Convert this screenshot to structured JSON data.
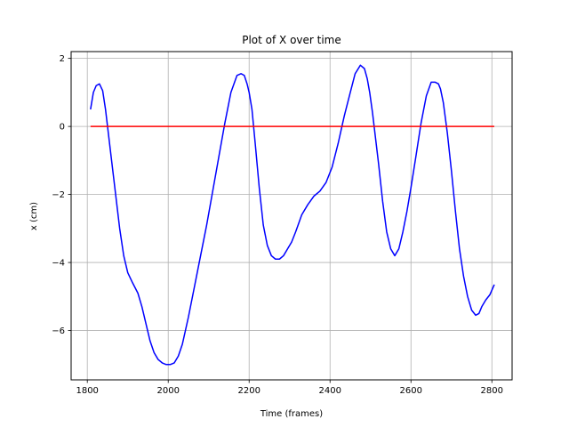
{
  "chart_data": {
    "type": "line",
    "title": "Plot of X over time",
    "xlabel": "Time (frames)",
    "ylabel": "x (cm)",
    "xlim": [
      1760,
      2850
    ],
    "ylim": [
      -7.45,
      2.2
    ],
    "xticks": [
      1800,
      2000,
      2200,
      2400,
      2600,
      2800
    ],
    "xtick_labels": [
      "1800",
      "2000",
      "2200",
      "2400",
      "2600",
      "2800"
    ],
    "yticks": [
      2,
      0,
      -2,
      -4,
      -6
    ],
    "ytick_labels": [
      "2",
      "0",
      "−2",
      "−4",
      "−6"
    ],
    "grid": true,
    "series": [
      {
        "color": "#0000ff",
        "x": [
          1808,
          1815,
          1822,
          1830,
          1838,
          1845,
          1852,
          1860,
          1870,
          1880,
          1890,
          1900,
          1912,
          1925,
          1935,
          1945,
          1955,
          1965,
          1975,
          1985,
          1995,
          2005,
          2015,
          2025,
          2035,
          2050,
          2065,
          2080,
          2095,
          2110,
          2125,
          2140,
          2155,
          2170,
          2180,
          2188,
          2195,
          2200,
          2207,
          2215,
          2225,
          2235,
          2245,
          2255,
          2265,
          2275,
          2285,
          2295,
          2305,
          2315,
          2330,
          2345,
          2360,
          2375,
          2390,
          2405,
          2420,
          2435,
          2450,
          2462,
          2475,
          2485,
          2492,
          2498,
          2505,
          2512,
          2520,
          2530,
          2540,
          2550,
          2560,
          2570,
          2580,
          2590,
          2600,
          2612,
          2625,
          2638,
          2650,
          2660,
          2668,
          2673,
          2680,
          2690,
          2700,
          2710,
          2720,
          2730,
          2740,
          2750,
          2760,
          2768,
          2775,
          2785,
          2795,
          2806
        ],
        "y": [
          0.5,
          1.0,
          1.2,
          1.25,
          1.05,
          0.5,
          -0.2,
          -1.0,
          -2.0,
          -3.0,
          -3.8,
          -4.3,
          -4.6,
          -4.9,
          -5.3,
          -5.8,
          -6.3,
          -6.65,
          -6.85,
          -6.95,
          -7.0,
          -7.0,
          -6.95,
          -6.75,
          -6.4,
          -5.6,
          -4.7,
          -3.8,
          -2.9,
          -1.9,
          -0.9,
          0.1,
          1.0,
          1.5,
          1.55,
          1.5,
          1.25,
          1.0,
          0.5,
          -0.5,
          -1.8,
          -2.9,
          -3.5,
          -3.8,
          -3.9,
          -3.9,
          -3.8,
          -3.6,
          -3.4,
          -3.1,
          -2.6,
          -2.3,
          -2.05,
          -1.9,
          -1.65,
          -1.2,
          -0.5,
          0.3,
          1.0,
          1.55,
          1.8,
          1.7,
          1.4,
          1.0,
          0.4,
          -0.3,
          -1.1,
          -2.2,
          -3.1,
          -3.6,
          -3.8,
          -3.6,
          -3.1,
          -2.5,
          -1.8,
          -0.9,
          0.1,
          0.9,
          1.3,
          1.3,
          1.25,
          1.1,
          0.7,
          -0.2,
          -1.3,
          -2.5,
          -3.6,
          -4.4,
          -5.0,
          -5.4,
          -5.55,
          -5.5,
          -5.3,
          -5.1,
          -4.95,
          -4.65
        ]
      },
      {
        "color": "#ff0000",
        "x": [
          1808,
          2806
        ],
        "y": [
          0,
          0
        ]
      }
    ]
  }
}
